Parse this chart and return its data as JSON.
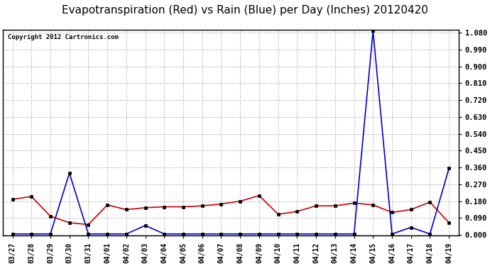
{
  "title": "Evapotranspiration (Red) vs Rain (Blue) per Day (Inches) 20120420",
  "copyright": "Copyright 2012 Cartronics.com",
  "x_labels": [
    "03/27",
    "03/28",
    "03/29",
    "03/30",
    "03/31",
    "04/01",
    "04/02",
    "04/03",
    "04/04",
    "04/05",
    "04/06",
    "04/07",
    "04/08",
    "04/09",
    "04/10",
    "04/11",
    "04/12",
    "04/13",
    "04/14",
    "04/15",
    "04/16",
    "04/17",
    "04/18",
    "04/19"
  ],
  "red_data": [
    0.19,
    0.205,
    0.1,
    0.065,
    0.055,
    0.16,
    0.135,
    0.145,
    0.15,
    0.15,
    0.155,
    0.165,
    0.18,
    0.21,
    0.11,
    0.125,
    0.155,
    0.155,
    0.17,
    0.16,
    0.12,
    0.135,
    0.175,
    0.065
  ],
  "blue_data": [
    0.005,
    0.005,
    0.005,
    0.33,
    0.005,
    0.005,
    0.005,
    0.05,
    0.005,
    0.005,
    0.005,
    0.005,
    0.005,
    0.005,
    0.005,
    0.005,
    0.005,
    0.005,
    0.005,
    1.09,
    0.005,
    0.04,
    0.005,
    0.355
  ],
  "red_color": "#cc0000",
  "blue_color": "#0000cc",
  "bg_color": "#ffffff",
  "plot_bg_color": "#ffffff",
  "grid_color": "#bbbbbb",
  "title_fontsize": 11,
  "ytick_step": 0.09,
  "ymax": 1.08,
  "ymin": 0.0
}
